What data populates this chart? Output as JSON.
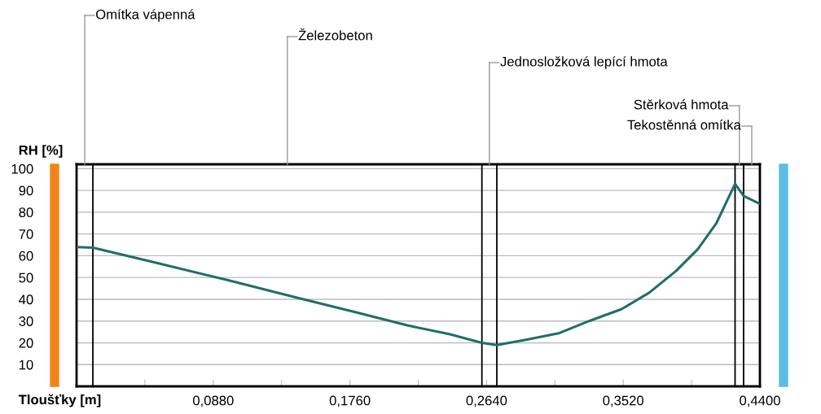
{
  "chart_data": {
    "type": "line",
    "xlabel": "Tloušťky [m]",
    "ylabel": "RH [%]",
    "series": [
      {
        "color": "#1f6f64",
        "x": [
          0,
          0.0105,
          0.05,
          0.096,
          0.143,
          0.18,
          0.213,
          0.24,
          0.261,
          0.2706,
          0.29,
          0.311,
          0.33,
          0.351,
          0.3687,
          0.386,
          0.4,
          0.412,
          0.424,
          0.4295,
          0.4395
        ],
        "values": [
          64,
          63.7,
          57,
          49,
          40.5,
          34,
          28,
          24,
          20,
          19,
          21.5,
          24.5,
          30,
          35.5,
          43,
          53,
          63,
          75,
          93,
          87.5,
          84
        ]
      }
    ],
    "xlim": [
      0,
      0.44
    ],
    "ylim": [
      0,
      102
    ],
    "xticks": [
      {
        "value": 0.044,
        "label": null
      },
      {
        "value": 0.088,
        "label": "0,0880"
      },
      {
        "value": 0.132,
        "label": null
      },
      {
        "value": 0.176,
        "label": "0,1760"
      },
      {
        "value": 0.22,
        "label": null
      },
      {
        "value": 0.264,
        "label": "0,2640"
      },
      {
        "value": 0.308,
        "label": null
      },
      {
        "value": 0.352,
        "label": "0,3520"
      },
      {
        "value": 0.396,
        "label": null
      },
      {
        "value": 0.44,
        "label": "0,4400"
      }
    ],
    "yticks": [
      10,
      20,
      30,
      40,
      50,
      60,
      70,
      80,
      90,
      100
    ],
    "grid": "y",
    "ref_lines": [
      {
        "axis": "x",
        "value": 0.0105,
        "color": "#000000"
      },
      {
        "axis": "x",
        "value": 0.261,
        "color": "#000000"
      },
      {
        "axis": "x",
        "value": 0.2706,
        "color": "#000000"
      },
      {
        "axis": "x",
        "value": 0.424,
        "color": "#000000"
      },
      {
        "axis": "x",
        "value": 0.4295,
        "color": "#000000"
      }
    ],
    "annotations": [
      "Omítka vápenná",
      "Železobeton",
      "Jednosložková lepící hmota",
      "Stěrková hmota",
      "Tekostěnná omítka"
    ]
  }
}
